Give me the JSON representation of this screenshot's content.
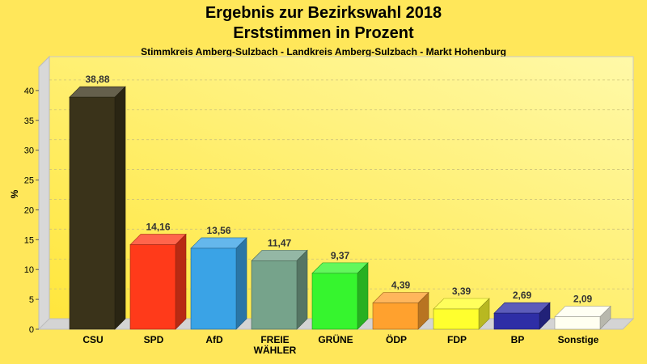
{
  "title": "Ergebnis zur Bezirkswahl 2018",
  "subtitle": "Erststimmen in Prozent",
  "subsubtitle": "Stimmkreis Amberg-Sulzbach - Landkreis Amberg-Sulzbach - Markt Hohenburg",
  "chart_data": {
    "type": "bar",
    "title": "Ergebnis zur Bezirkswahl 2018",
    "subtitle": "Erststimmen in Prozent",
    "xlabel": "",
    "ylabel": "%",
    "ylim": [
      0,
      40
    ],
    "yticks": [
      "0",
      "5",
      "10",
      "15",
      "20",
      "25",
      "30",
      "35",
      "40"
    ],
    "grid": true,
    "legend": "none",
    "categories": [
      [
        "CSU"
      ],
      [
        "SPD"
      ],
      [
        "AfD"
      ],
      [
        "FREIE",
        "WÄHLER"
      ],
      [
        "GRÜNE"
      ],
      [
        "ÖDP"
      ],
      [
        "FDP"
      ],
      [
        "BP"
      ],
      [
        "Sonstige"
      ]
    ],
    "values": [
      38.88,
      14.16,
      13.56,
      11.47,
      9.37,
      4.39,
      3.39,
      2.69,
      2.09
    ],
    "value_labels": [
      "38,88",
      "14,16",
      "13,56",
      "11,47",
      "9,37",
      "4,39",
      "3,39",
      "2,69",
      "2,09"
    ],
    "colors": [
      "#3A331A",
      "#FF3A1A",
      "#3AA3E6",
      "#76A38B",
      "#36F52E",
      "#FFA12E",
      "#FFFF2E",
      "#2E2EA6",
      "#FFFFF0"
    ]
  }
}
